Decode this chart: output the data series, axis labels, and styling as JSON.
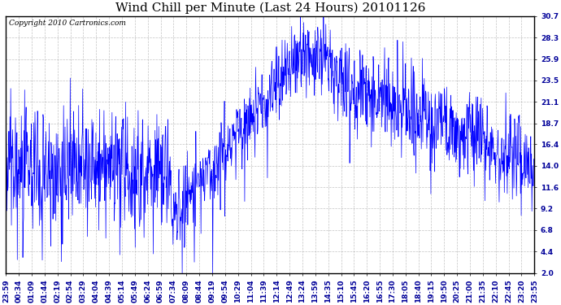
{
  "title": "Wind Chill per Minute (Last 24 Hours) 20101126",
  "copyright": "Copyright 2010 Cartronics.com",
  "line_color": "#0000FF",
  "bg_color": "#FFFFFF",
  "grid_color": "#AAAAAA",
  "yticks": [
    2.0,
    4.4,
    6.8,
    9.2,
    11.6,
    14.0,
    16.4,
    18.7,
    21.1,
    23.5,
    25.9,
    28.3,
    30.7
  ],
  "ylim": [
    2.0,
    30.7
  ],
  "xtick_labels": [
    "23:59",
    "00:34",
    "01:09",
    "01:44",
    "02:19",
    "02:54",
    "03:29",
    "04:04",
    "04:39",
    "05:14",
    "05:49",
    "06:24",
    "06:59",
    "07:34",
    "08:09",
    "08:44",
    "09:19",
    "09:54",
    "10:29",
    "11:04",
    "11:39",
    "12:14",
    "12:49",
    "13:24",
    "13:59",
    "14:35",
    "15:10",
    "15:45",
    "16:20",
    "16:55",
    "17:30",
    "18:05",
    "18:40",
    "19:15",
    "19:50",
    "20:25",
    "21:00",
    "21:35",
    "22:10",
    "22:45",
    "23:20",
    "23:55"
  ],
  "title_fontsize": 11,
  "copyright_fontsize": 6.5,
  "tick_fontsize": 6.5,
  "figwidth": 6.9,
  "figheight": 3.75,
  "dpi": 100
}
